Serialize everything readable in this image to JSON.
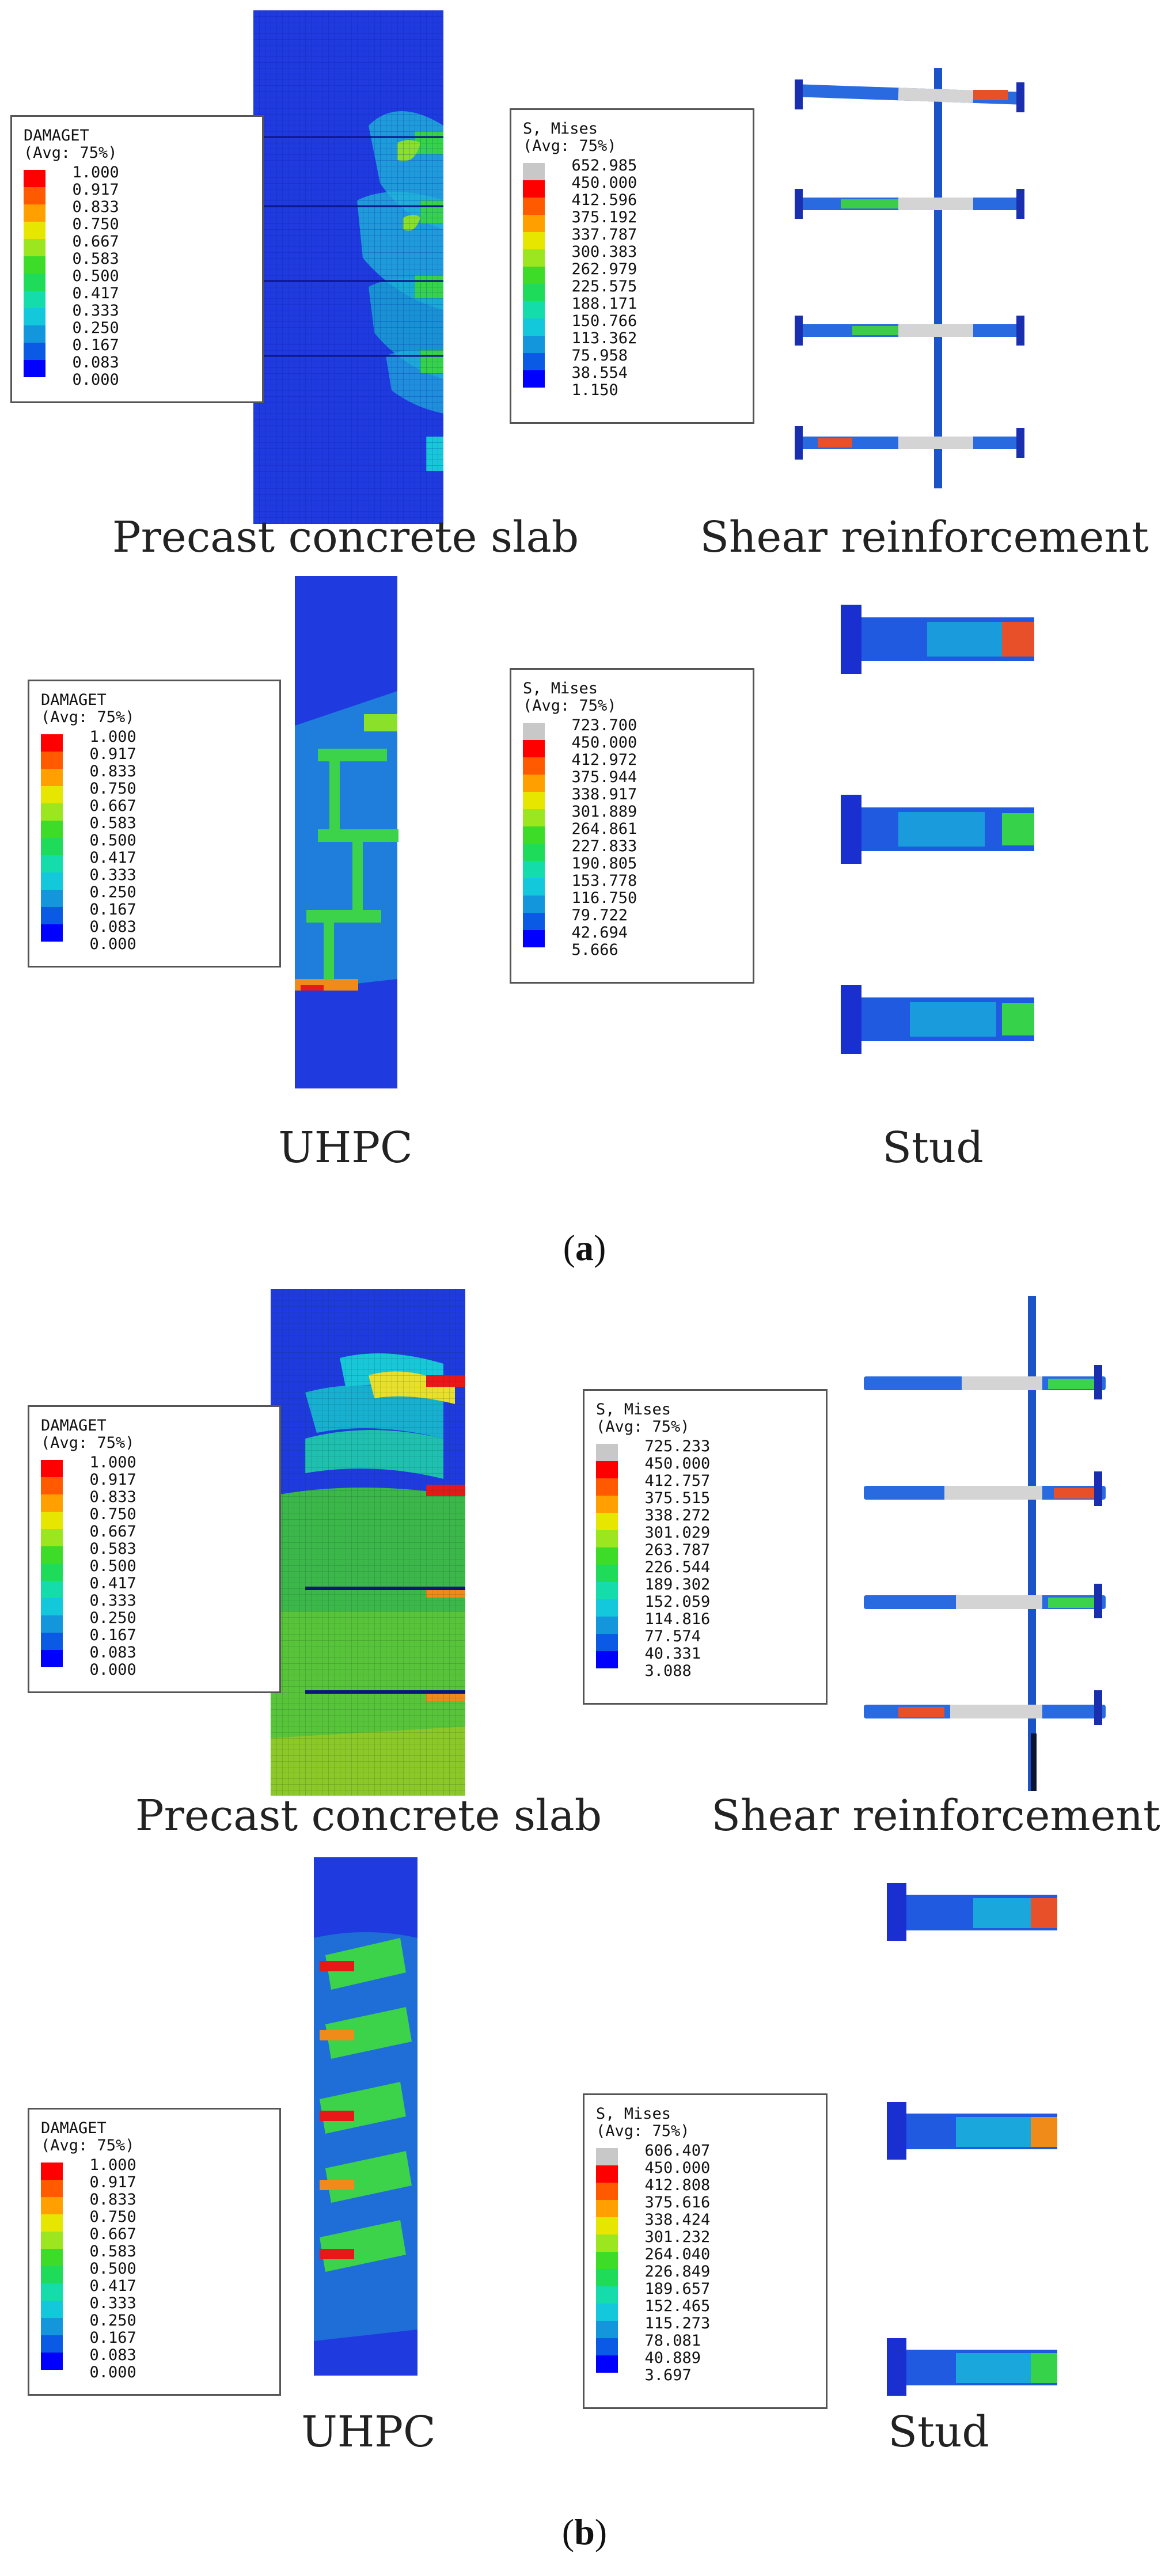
{
  "colors": {
    "blue_dark": "#1a2fd0",
    "cyan": "#18c8d8",
    "green": "#36d24a",
    "yellow": "#e8e02a",
    "orange": "#f08a18",
    "red": "#e81818",
    "grey": "#c8c8c8"
  },
  "damage_scale_colors": [
    "#ff0000",
    "#ff5a00",
    "#ffa000",
    "#e6e600",
    "#9be61e",
    "#3cdc28",
    "#1edc5a",
    "#14dcaa",
    "#14c8dc",
    "#1496dc",
    "#0a5ae6",
    "#0000ff"
  ],
  "stress_scale_colors": [
    "#c8c8c8",
    "#ff0000",
    "#ff5a00",
    "#ffa000",
    "#e6e600",
    "#9be61e",
    "#3cdc28",
    "#1edc5a",
    "#14dcaa",
    "#14c8dc",
    "#1496dc",
    "#0a5ae6",
    "#0000ff"
  ],
  "panels": {
    "a": {
      "label": "a",
      "captions": {
        "precast": "Precast concrete slab",
        "shear": "Shear reinforcement",
        "uhpc": "UHPC",
        "stud": "Stud"
      },
      "legend_damage_top": {
        "title": "DAMAGET",
        "subtitle": "(Avg: 75%)",
        "values": [
          "1.000",
          "0.917",
          "0.833",
          "0.750",
          "0.667",
          "0.583",
          "0.500",
          "0.417",
          "0.333",
          "0.250",
          "0.167",
          "0.083",
          "0.000"
        ]
      },
      "legend_mises_top": {
        "title": "S, Mises",
        "subtitle": "(Avg: 75%)",
        "values": [
          "652.985",
          "450.000",
          "412.596",
          "375.192",
          "337.787",
          "300.383",
          "262.979",
          "225.575",
          "188.171",
          "150.766",
          "113.362",
          "75.958",
          "38.554",
          "1.150"
        ]
      },
      "legend_damage_bottom": {
        "title": "DAMAGET",
        "subtitle": "(Avg: 75%)",
        "values": [
          "1.000",
          "0.917",
          "0.833",
          "0.750",
          "0.667",
          "0.583",
          "0.500",
          "0.417",
          "0.333",
          "0.250",
          "0.167",
          "0.083",
          "0.000"
        ]
      },
      "legend_mises_bottom": {
        "title": "S, Mises",
        "subtitle": "(Avg: 75%)",
        "values": [
          "723.700",
          "450.000",
          "412.972",
          "375.944",
          "338.917",
          "301.889",
          "264.861",
          "227.833",
          "190.805",
          "153.778",
          "116.750",
          "79.722",
          "42.694",
          "5.666"
        ]
      }
    },
    "b": {
      "label": "b",
      "captions": {
        "precast": "Precast concrete slab",
        "shear": "Shear reinforcement",
        "uhpc": "UHPC",
        "stud": "Stud"
      },
      "legend_damage_top": {
        "title": "DAMAGET",
        "subtitle": "(Avg: 75%)",
        "values": [
          "1.000",
          "0.917",
          "0.833",
          "0.750",
          "0.667",
          "0.583",
          "0.500",
          "0.417",
          "0.333",
          "0.250",
          "0.167",
          "0.083",
          "0.000"
        ]
      },
      "legend_mises_top": {
        "title": "S, Mises",
        "subtitle": "(Avg: 75%)",
        "values": [
          "725.233",
          "450.000",
          "412.757",
          "375.515",
          "338.272",
          "301.029",
          "263.787",
          "226.544",
          "189.302",
          "152.059",
          "114.816",
          "77.574",
          "40.331",
          "3.088"
        ]
      },
      "legend_damage_bottom": {
        "title": "DAMAGET",
        "subtitle": "(Avg: 75%)",
        "values": [
          "1.000",
          "0.917",
          "0.833",
          "0.750",
          "0.667",
          "0.583",
          "0.500",
          "0.417",
          "0.333",
          "0.250",
          "0.167",
          "0.083",
          "0.000"
        ]
      },
      "legend_mises_bottom": {
        "title": "S, Mises",
        "subtitle": "(Avg: 75%)",
        "values": [
          "606.407",
          "450.000",
          "412.808",
          "375.616",
          "338.424",
          "301.232",
          "264.040",
          "226.849",
          "189.657",
          "152.465",
          "115.273",
          "78.081",
          "40.889",
          "3.697"
        ]
      }
    }
  }
}
